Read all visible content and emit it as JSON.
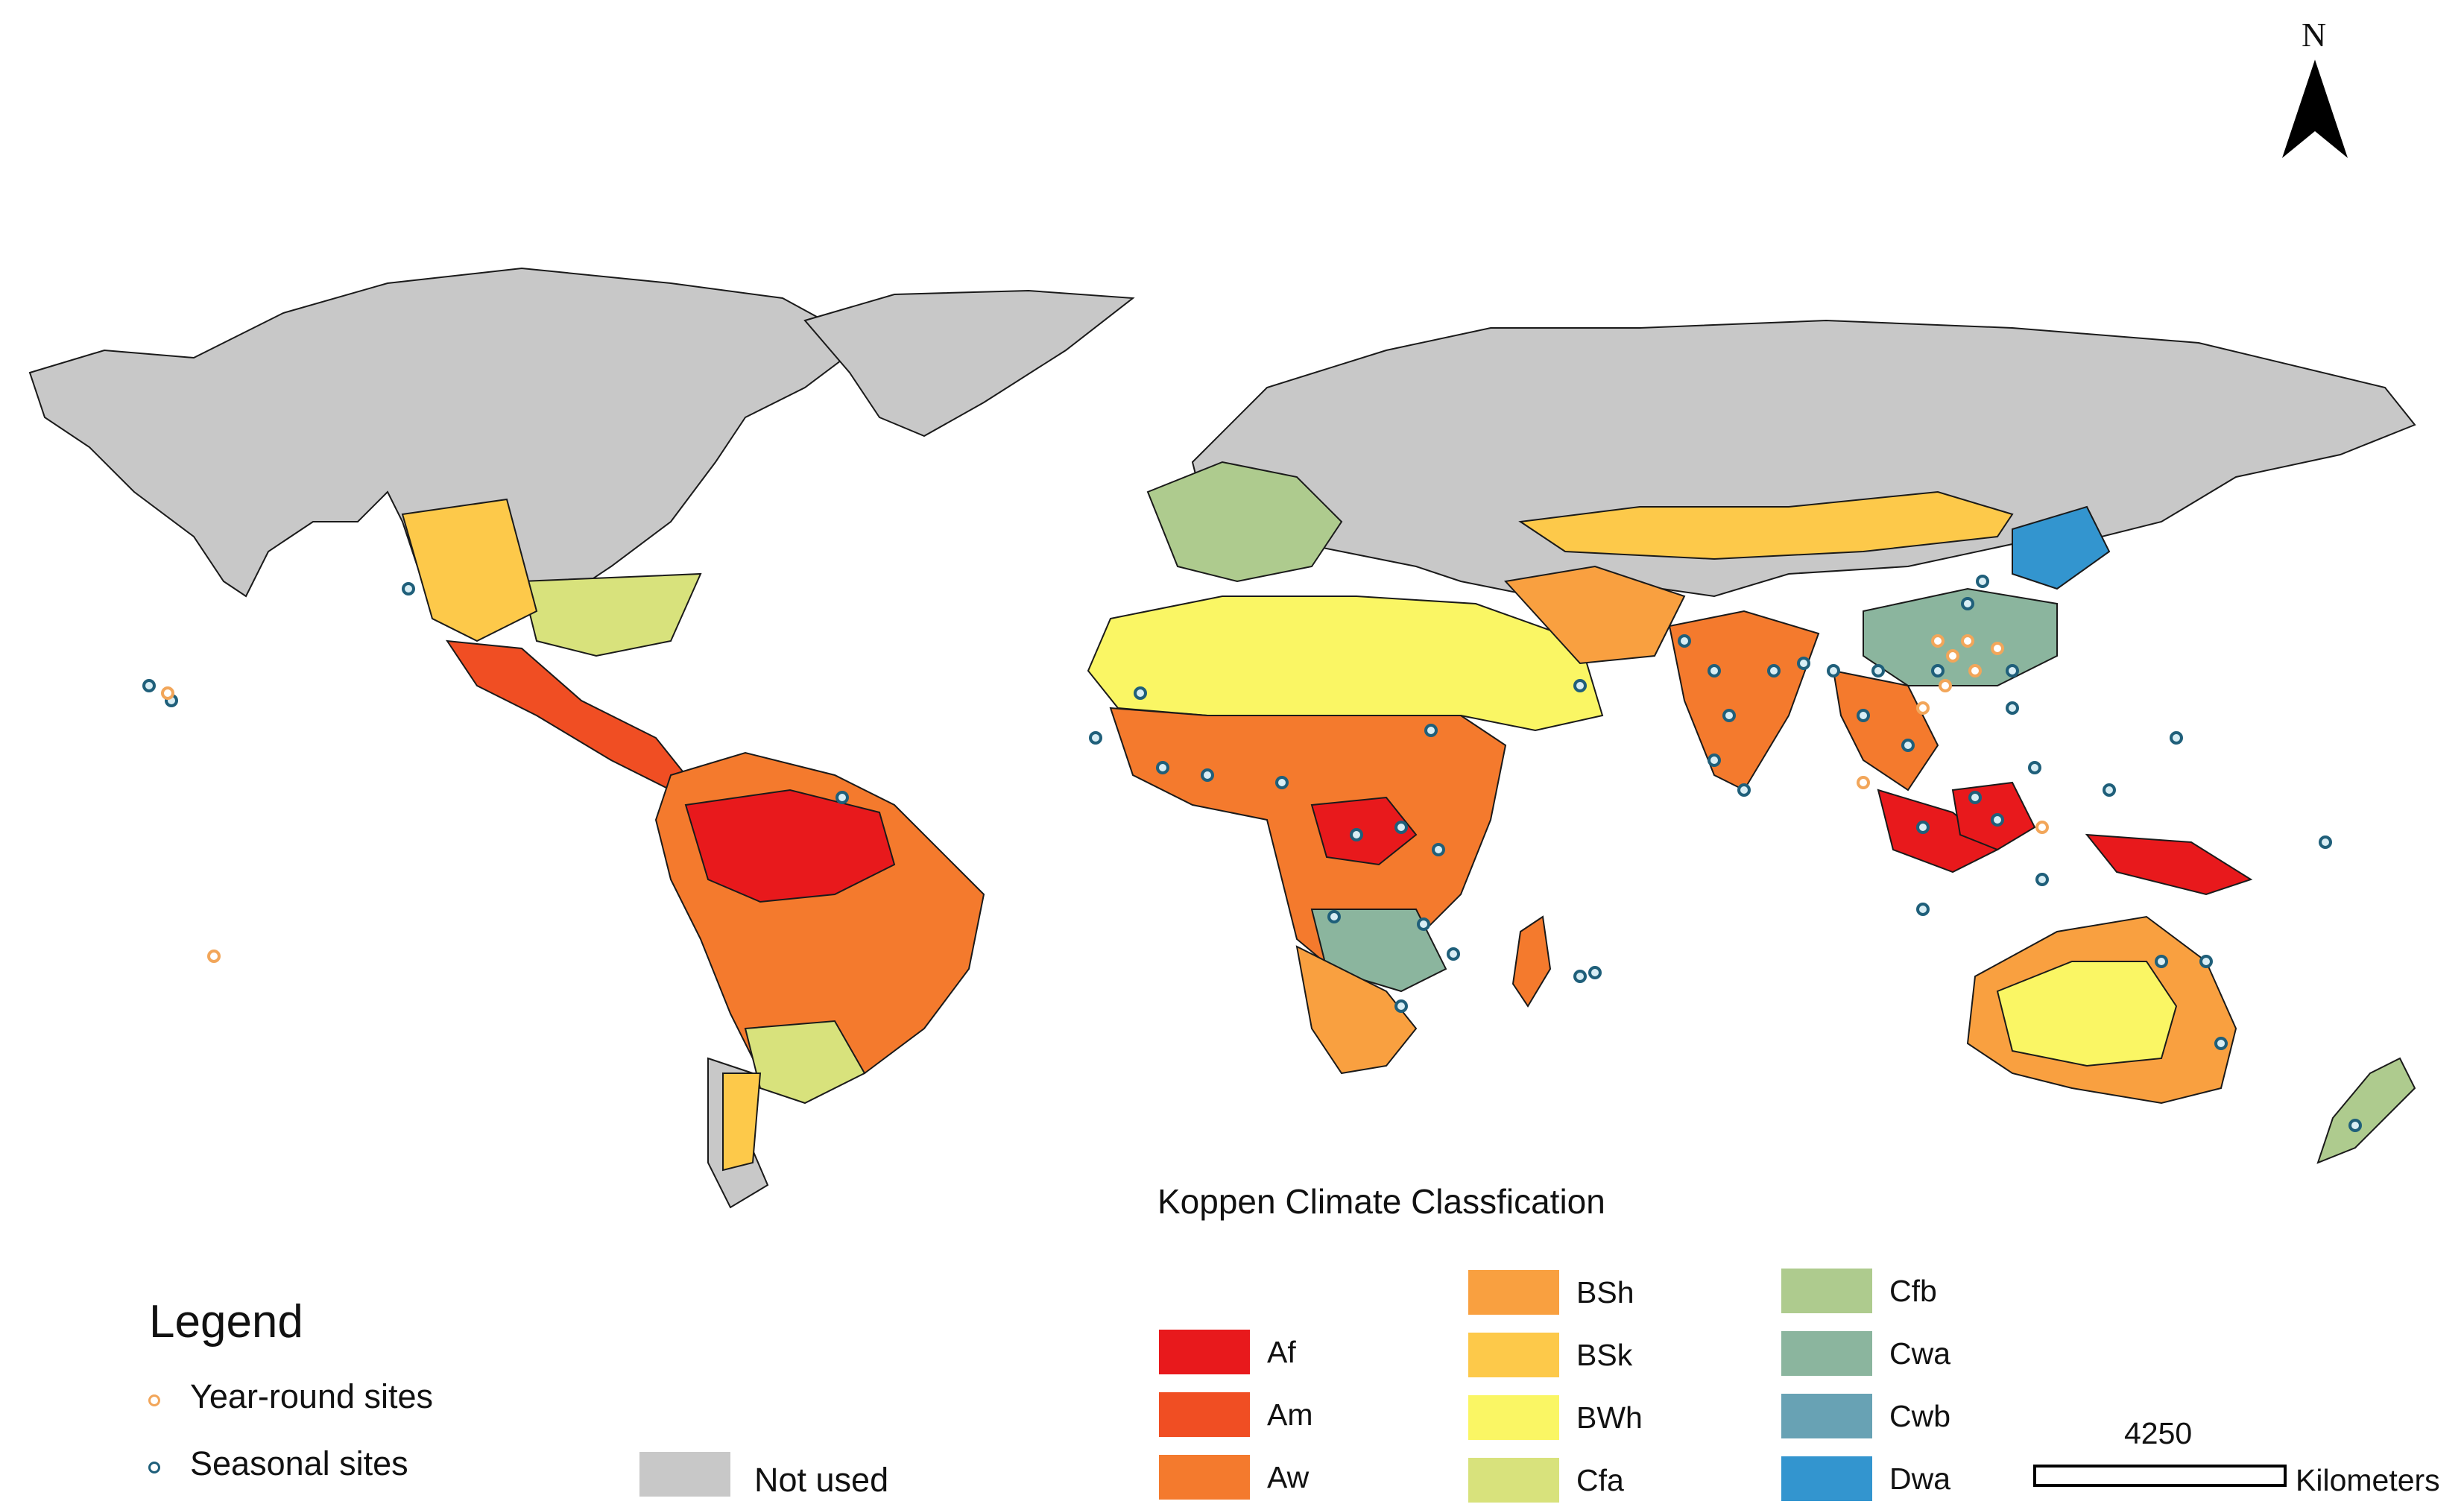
{
  "legend": {
    "title": "Legend",
    "year_round": {
      "label": "Year-round sites",
      "color": "#F2A65A"
    },
    "seasonal": {
      "label": "Seasonal sites",
      "color": "#1F5F7A"
    },
    "not_used": {
      "label": "Not used",
      "color": "#C8C8C8"
    }
  },
  "classification": {
    "title": "Koppen Climate Classfication",
    "classes": [
      {
        "code": "Af",
        "color": "#E8191C"
      },
      {
        "code": "Am",
        "color": "#F04E23"
      },
      {
        "code": "Aw",
        "color": "#F47A2D"
      },
      {
        "code": "BSh",
        "color": "#F9A040"
      },
      {
        "code": "BSk",
        "color": "#FDC94A"
      },
      {
        "code": "BWh",
        "color": "#FAF664"
      },
      {
        "code": "Cfa",
        "color": "#D8E27C"
      },
      {
        "code": "Cfb",
        "color": "#AECB8E"
      },
      {
        "code": "Cwa",
        "color": "#8BB59E"
      },
      {
        "code": "Cwb",
        "color": "#68A2B4"
      },
      {
        "code": "Dwa",
        "color": "#3395CF"
      }
    ]
  },
  "north_arrow": {
    "label": "N"
  },
  "scale_bar": {
    "value": "4250",
    "unit": "Kilometers"
  },
  "colors": {
    "land_unused": "#C8C8C8",
    "border": "#1A1A1A",
    "ocean": "#FFFFFF"
  }
}
